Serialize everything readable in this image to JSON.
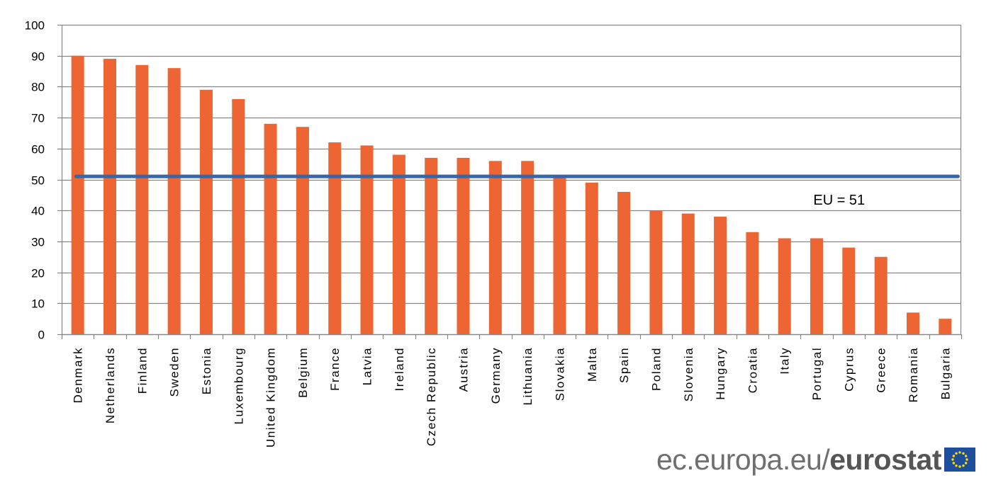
{
  "chart_data": {
    "type": "bar",
    "categories": [
      "Denmark",
      "Netherlands",
      "Finland",
      "Sweden",
      "Estonia",
      "Luxembourg",
      "United Kingdom",
      "Belgium",
      "France",
      "Latvia",
      "Ireland",
      "Czech Republic",
      "Austria",
      "Germany",
      "Lithuania",
      "Slovakia",
      "Malta",
      "Spain",
      "Poland",
      "Slovenia",
      "Hungary",
      "Croatia",
      "Italy",
      "Portugal",
      "Cyprus",
      "Greece",
      "Romania",
      "Bulgaria"
    ],
    "values": [
      90,
      89,
      87,
      86,
      79,
      76,
      68,
      67,
      62,
      61,
      58,
      57,
      57,
      56,
      56,
      51,
      49,
      46,
      40,
      39,
      38,
      33,
      31,
      31,
      28,
      25,
      7,
      5
    ],
    "ylim": [
      0,
      100
    ],
    "yticks": [
      "0",
      "10",
      "20",
      "30",
      "40",
      "50",
      "60",
      "70",
      "80",
      "90",
      "100"
    ],
    "grid": true,
    "reference_line": {
      "value": 51,
      "label": "EU = 51"
    },
    "colors": {
      "bar": "#ed6532",
      "reference": "#3867a8",
      "grid": "#868686"
    }
  },
  "footer": {
    "url": "ec.europa.eu/",
    "brand": "eurostat",
    "flag_icon": "eu-flag-icon"
  }
}
